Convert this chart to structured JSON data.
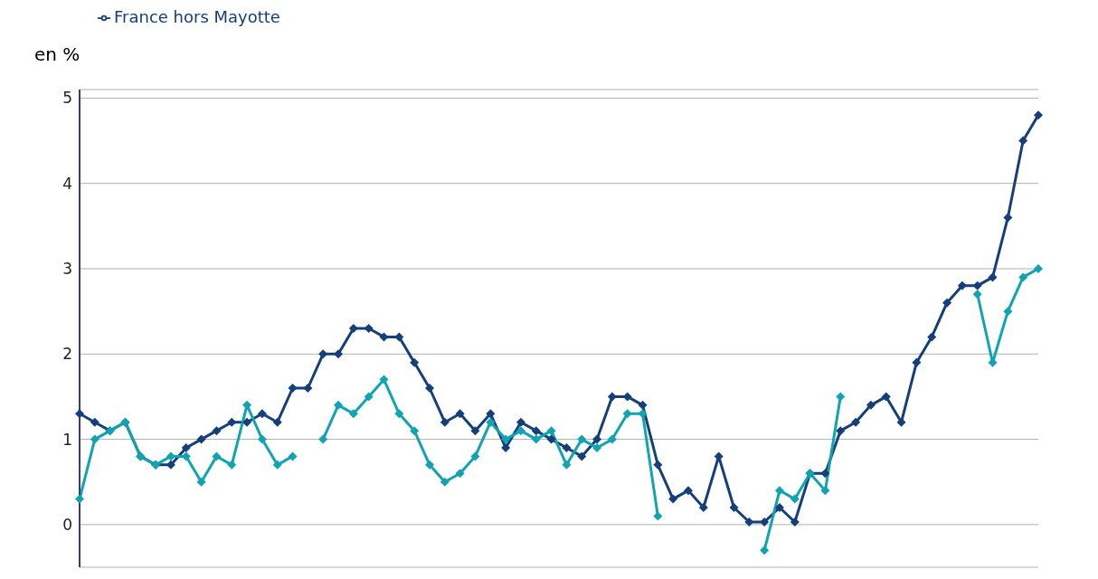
{
  "chart_data": {
    "type": "line",
    "ylabel": "en %",
    "categories": [
      null,
      null,
      null,
      null,
      null,
      null,
      null,
      null,
      null,
      null,
      null,
      null,
      null,
      null,
      null,
      null,
      null,
      null,
      null,
      null,
      null,
      null,
      null,
      null,
      null,
      null,
      null,
      null,
      null,
      null,
      null,
      null,
      null,
      null,
      null,
      null,
      null,
      null,
      null,
      null,
      null,
      null,
      null,
      null,
      null,
      null,
      null,
      null,
      null,
      null,
      null,
      null,
      null,
      null,
      null,
      null,
      null,
      null,
      null,
      null,
      null,
      null,
      null,
      null
    ],
    "series": [
      {
        "name": "France hors Mayotte",
        "color": "#143f7a",
        "values": [
          1.3,
          1.2,
          1.1,
          1.2,
          0.8,
          0.7,
          0.7,
          0.9,
          1.0,
          1.1,
          1.2,
          1.2,
          1.3,
          1.2,
          1.6,
          1.6,
          2.0,
          2.0,
          2.3,
          2.3,
          2.2,
          2.2,
          1.9,
          1.6,
          1.2,
          1.3,
          1.1,
          1.3,
          0.9,
          1.2,
          1.1,
          1.0,
          0.9,
          0.8,
          1.0,
          1.5,
          1.5,
          1.4,
          0.7,
          0.3,
          0.4,
          0.2,
          0.8,
          0.2,
          0.03,
          0.03,
          0.2,
          0.03,
          0.6,
          0.6,
          1.1,
          1.2,
          1.4,
          1.5,
          1.2,
          1.9,
          2.2,
          2.6,
          2.8,
          2.8,
          2.9,
          3.6,
          4.5,
          4.8
        ]
      },
      {
        "color": "#10a4b2",
        "values": [
          0.3,
          1.0,
          1.1,
          1.2,
          0.8,
          0.7,
          0.8,
          0.8,
          0.5,
          0.8,
          0.7,
          1.4,
          1.0,
          0.7,
          0.8,
          null,
          1.0,
          1.4,
          1.3,
          1.5,
          1.7,
          1.3,
          1.1,
          0.7,
          0.5,
          0.6,
          0.8,
          1.2,
          1.0,
          1.1,
          1.0,
          1.1,
          0.7,
          1.0,
          0.9,
          1.0,
          1.3,
          1.3,
          0.1,
          null,
          null,
          null,
          null,
          null,
          null,
          -0.3,
          0.4,
          0.3,
          0.6,
          0.4,
          1.5,
          null,
          null,
          null,
          null,
          null,
          null,
          null,
          null,
          2.7,
          1.9,
          2.5,
          2.9,
          3.0
        ]
      }
    ],
    "ylim": [
      -0.5,
      5.1
    ],
    "yticks": [
      0,
      1,
      2,
      3,
      4,
      5
    ],
    "grid": "y",
    "legend": "top left",
    "marker": "diamond",
    "line_style": "solid"
  }
}
